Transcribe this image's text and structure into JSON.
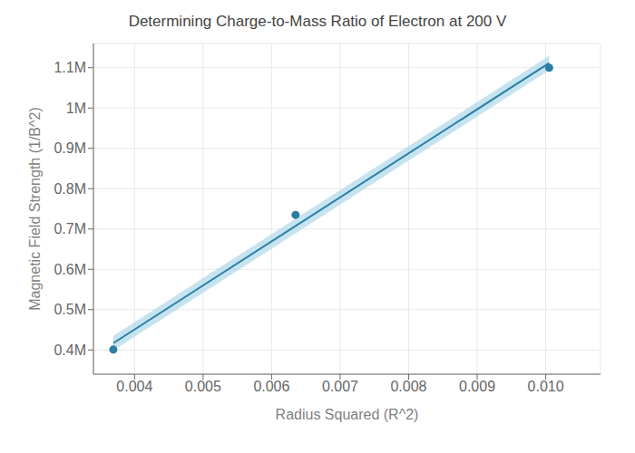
{
  "chart_data": {
    "type": "scatter",
    "title": "Determining Charge-to-Mass Ratio of Electron at 200 V",
    "x_label": "Radius Squared (R^2)",
    "y_label": "Magnetic Field Strength (1/B^2)",
    "x": [
      0.00369,
      0.00635,
      0.01005
    ],
    "values": [
      401000,
      735000,
      1100000
    ],
    "color": "#2a7fa0",
    "marker": "circle",
    "fit": {
      "type": "line",
      "x": [
        0.00369,
        0.01005
      ],
      "values": [
        417011.2,
        1111510.8
      ],
      "color": "#2a7fa0"
    },
    "band": {
      "type": "area",
      "x": [
        0.00369,
        0.01005
      ],
      "lower": [
        399011.2,
        1093510.8
      ],
      "upper": [
        435011.2,
        1129510.8
      ],
      "color": "#a8d4e8"
    },
    "xlim": [
      0.0034,
      0.0108
    ],
    "ylim": [
      340000,
      1160000
    ],
    "xticks": [
      0.004,
      0.005,
      0.006,
      0.007,
      0.008,
      0.009,
      {
        "value": 0.01,
        "label": "0.010"
      }
    ],
    "yticks": [
      {
        "value": 400000,
        "label": "0.4M"
      },
      {
        "value": 500000,
        "label": "0.5M"
      },
      {
        "value": 600000,
        "label": "0.6M"
      },
      {
        "value": 700000,
        "label": "0.7M"
      },
      {
        "value": 800000,
        "label": "0.8M"
      },
      {
        "value": 900000,
        "label": "0.9M"
      },
      {
        "value": 1000000,
        "label": "1M"
      },
      {
        "value": 1100000,
        "label": "1.1M"
      }
    ],
    "grid": true
  }
}
